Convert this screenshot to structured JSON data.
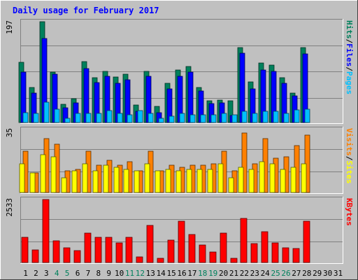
{
  "title": "Daily usage for February 2017",
  "colors": {
    "background": "#c0c0c0",
    "title": "#0000ff",
    "hits": "#00805c",
    "files": "#0000ff",
    "pages": "#00c0ff",
    "visits": "#ff8000",
    "sites": "#ffff00",
    "kbytes": "#ff0000",
    "weekend_label": "#00805c",
    "weekday_label": "#000000"
  },
  "chart_data": [
    {
      "type": "bar",
      "panel": "hits-files-pages",
      "ymax_label": "197",
      "ylim": [
        0,
        197
      ],
      "right_labels": [
        "Pages",
        "Files",
        "Hits"
      ],
      "separator": "/",
      "days": [
        "1",
        "2",
        "3",
        "4",
        "5",
        "6",
        "7",
        "8",
        "9",
        "10",
        "11",
        "12",
        "13",
        "14",
        "15",
        "16",
        "17",
        "18",
        "19",
        "20",
        "21",
        "22",
        "23",
        "24",
        "25",
        "26",
        "27",
        "28",
        "29",
        "30",
        "31"
      ],
      "weekend_days": [
        4,
        5,
        11,
        12,
        18,
        19,
        25,
        26
      ],
      "series": [
        {
          "name": "Hits",
          "values": [
            117,
            68,
            197,
            98,
            35,
            46,
            119,
            88,
            100,
            89,
            95,
            34,
            100,
            32,
            76,
            103,
            110,
            68,
            42,
            44,
            42,
            146,
            80,
            116,
            112,
            87,
            58,
            146,
            0,
            0,
            0
          ]
        },
        {
          "name": "Files",
          "values": [
            99,
            58,
            164,
            95,
            29,
            38,
            106,
            78,
            90,
            76,
            83,
            22,
            90,
            19,
            66,
            90,
            98,
            61,
            37,
            38,
            13,
            135,
            66,
            102,
            100,
            76,
            52,
            134,
            0,
            0,
            0
          ]
        },
        {
          "name": "Pages",
          "values": [
            19,
            18,
            39,
            26,
            8,
            18,
            18,
            18,
            23,
            18,
            15,
            23,
            18,
            8,
            12,
            18,
            15,
            15,
            15,
            18,
            15,
            22,
            18,
            22,
            22,
            18,
            25,
            26,
            0,
            0,
            0
          ]
        }
      ]
    },
    {
      "type": "bar",
      "panel": "visits-sites",
      "ymax_label": "35",
      "ylim": [
        0,
        35
      ],
      "right_labels": [
        "Sites",
        "Visits"
      ],
      "separator": "/",
      "series": [
        {
          "name": "Visits",
          "values": [
            23,
            11,
            30,
            27,
            12,
            13,
            23,
            15,
            18,
            15,
            17,
            12,
            23,
            12,
            15,
            14,
            15,
            15,
            16,
            23,
            12,
            33,
            16,
            30,
            19,
            20,
            26,
            32,
            0,
            0,
            0
          ]
        },
        {
          "name": "Sites",
          "values": [
            16,
            11,
            21,
            20,
            8,
            12,
            16,
            12,
            15,
            14,
            13,
            12,
            16,
            12,
            13,
            12,
            13,
            13,
            13,
            16,
            8,
            14,
            13,
            17,
            16,
            13,
            14,
            16,
            0,
            0,
            0
          ]
        }
      ]
    },
    {
      "type": "bar",
      "panel": "kbytes",
      "ymax_label": "2533",
      "ylim": [
        0,
        2533
      ],
      "right_labels": [
        "KBytes"
      ],
      "series": [
        {
          "name": "KBytes",
          "values": [
            1020,
            500,
            2533,
            864,
            592,
            476,
            1172,
            1020,
            1020,
            776,
            1020,
            212,
            1500,
            176,
            896,
            1660,
            1120,
            692,
            428,
            1172,
            176,
            1780,
            764,
            1240,
            788,
            596,
            576,
            1660,
            0,
            0,
            0
          ]
        }
      ]
    }
  ]
}
